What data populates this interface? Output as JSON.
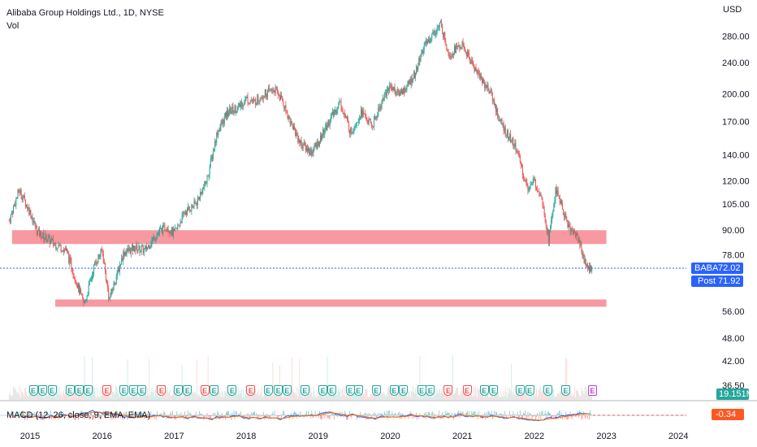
{
  "header": {
    "title": "Alibaba Group Holdings Ltd., 1D, NYSE",
    "sub": "Vol",
    "currency": "USD"
  },
  "price_badges": {
    "main_label": "BABA",
    "main_value": "72.02",
    "post_label": "Post",
    "post_value": "71.92",
    "volume_value": "19.151M"
  },
  "macd": {
    "label": "MACD (12, 26, close, 9, EMA, EMA)",
    "value": "-0.34"
  },
  "colors": {
    "up": "#26a69a",
    "down": "#ef5350",
    "zone": "#f7868f",
    "badge": "#2962ff",
    "macd_line": "#2962ff",
    "signal_line": "#ff6d00"
  },
  "chart_data": {
    "type": "candlestick",
    "scale": "log",
    "x_labels": [
      "2015",
      "2016",
      "2017",
      "2018",
      "2019",
      "2020",
      "2021",
      "2022",
      "2023",
      "2024"
    ],
    "y_ticks": [
      "280.00",
      "240.00",
      "200.00",
      "170.00",
      "140.00",
      "120.00",
      "105.00",
      "90.00",
      "78.00",
      "56.00",
      "48.00",
      "42.00",
      "36.50"
    ],
    "current_price": 72.02,
    "series": [
      {
        "name": "BABA",
        "x": [
          2014.71,
          2014.85,
          2015.0,
          2015.1,
          2015.3,
          2015.5,
          2015.65,
          2015.75,
          2015.9,
          2016.0,
          2016.1,
          2016.3,
          2016.45,
          2016.6,
          2016.75,
          2016.9,
          2017.0,
          2017.15,
          2017.3,
          2017.45,
          2017.6,
          2017.75,
          2017.9,
          2018.0,
          2018.1,
          2018.25,
          2018.4,
          2018.5,
          2018.6,
          2018.75,
          2018.9,
          2019.0,
          2019.15,
          2019.3,
          2019.45,
          2019.6,
          2019.75,
          2019.9,
          2020.0,
          2020.1,
          2020.2,
          2020.35,
          2020.45,
          2020.6,
          2020.7,
          2020.82,
          2020.9,
          2021.0,
          2021.1,
          2021.25,
          2021.4,
          2021.5,
          2021.6,
          2021.75,
          2021.9,
          2022.0,
          2022.1,
          2022.2,
          2022.3,
          2022.4,
          2022.5,
          2022.6,
          2022.7,
          2022.75,
          2022.8
        ],
        "y": [
          95,
          114,
          100,
          89,
          84,
          80,
          66,
          58,
          74,
          80,
          60,
          79,
          81,
          80,
          88,
          92,
          88,
          100,
          105,
          120,
          160,
          180,
          185,
          195,
          190,
          200,
          205,
          192,
          172,
          150,
          142,
          150,
          170,
          190,
          160,
          180,
          165,
          195,
          210,
          200,
          205,
          225,
          260,
          285,
          300,
          250,
          260,
          265,
          245,
          220,
          200,
          175,
          160,
          145,
          115,
          120,
          110,
          85,
          115,
          100,
          90,
          87,
          75,
          72,
          72
        ]
      }
    ],
    "annotations": [
      {
        "label": "resistance zone",
        "y_range": [
          83,
          90
        ],
        "x_range": [
          2014.75,
          2023.0
        ]
      },
      {
        "label": "support zone",
        "y_range": [
          57.5,
          60
        ],
        "x_range": [
          2015.35,
          2023.0
        ]
      }
    ],
    "earnings_markers": [
      {
        "x": 2015.04,
        "result": "beat"
      },
      {
        "x": 2015.17,
        "result": "beat"
      },
      {
        "x": 2015.3,
        "result": "beat"
      },
      {
        "x": 2015.55,
        "result": "beat"
      },
      {
        "x": 2015.68,
        "result": "beat"
      },
      {
        "x": 2015.8,
        "result": "beat"
      },
      {
        "x": 2016.06,
        "result": "miss"
      },
      {
        "x": 2016.3,
        "result": "beat"
      },
      {
        "x": 2016.43,
        "result": "beat"
      },
      {
        "x": 2016.55,
        "result": "beat"
      },
      {
        "x": 2016.82,
        "result": "miss"
      },
      {
        "x": 2017.05,
        "result": "beat"
      },
      {
        "x": 2017.18,
        "result": "beat"
      },
      {
        "x": 2017.42,
        "result": "miss"
      },
      {
        "x": 2017.55,
        "result": "beat"
      },
      {
        "x": 2017.8,
        "result": "beat"
      },
      {
        "x": 2018.06,
        "result": "miss"
      },
      {
        "x": 2018.3,
        "result": "beat"
      },
      {
        "x": 2018.44,
        "result": "beat"
      },
      {
        "x": 2018.56,
        "result": "beat"
      },
      {
        "x": 2018.81,
        "result": "beat"
      },
      {
        "x": 2019.06,
        "result": "beat"
      },
      {
        "x": 2019.18,
        "result": "beat"
      },
      {
        "x": 2019.44,
        "result": "beat"
      },
      {
        "x": 2019.55,
        "result": "beat"
      },
      {
        "x": 2019.8,
        "result": "beat"
      },
      {
        "x": 2020.05,
        "result": "beat"
      },
      {
        "x": 2020.18,
        "result": "beat"
      },
      {
        "x": 2020.43,
        "result": "beat"
      },
      {
        "x": 2020.55,
        "result": "beat"
      },
      {
        "x": 2020.8,
        "result": "miss"
      },
      {
        "x": 2021.06,
        "result": "miss"
      },
      {
        "x": 2021.3,
        "result": "beat"
      },
      {
        "x": 2021.43,
        "result": "beat"
      },
      {
        "x": 2021.8,
        "result": "beat"
      },
      {
        "x": 2021.93,
        "result": "beat"
      },
      {
        "x": 2022.18,
        "result": "beat"
      },
      {
        "x": 2022.43,
        "result": "beat"
      },
      {
        "x": 2022.8,
        "result": "upcoming"
      }
    ]
  }
}
